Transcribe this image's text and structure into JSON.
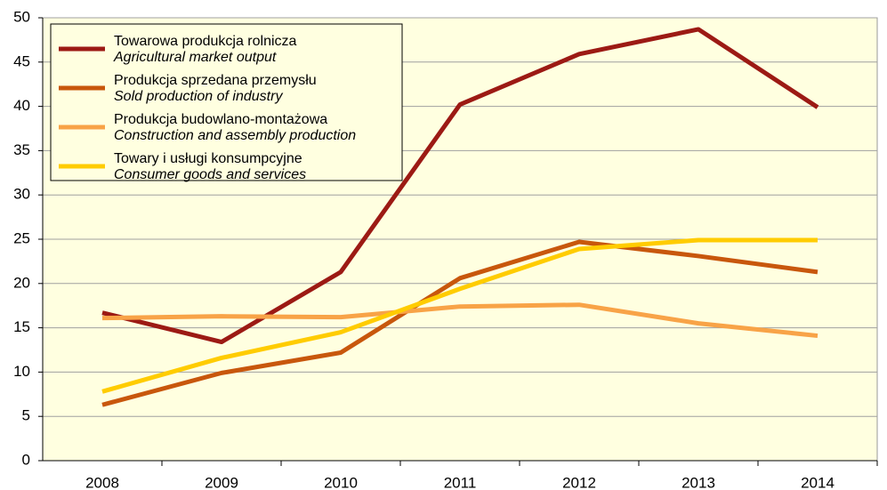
{
  "chart_data": {
    "type": "line",
    "categories": [
      "2008",
      "2009",
      "2010",
      "2011",
      "2012",
      "2013",
      "2014"
    ],
    "series": [
      {
        "name": "Towarowa produkcja rolnicza",
        "name_en": "Agricultural market output",
        "color": "#9c1a14",
        "values": [
          16.7,
          13.4,
          21.3,
          40.2,
          45.9,
          48.7,
          39.9
        ]
      },
      {
        "name": "Produkcja sprzedana przemysłu",
        "name_en": "Sold production of industry",
        "color": "#c8570c",
        "values": [
          6.3,
          9.9,
          12.2,
          20.6,
          24.7,
          23.1,
          21.3
        ]
      },
      {
        "name": "Produkcja budowlano-montażowa",
        "name_en": "Construction and assembly production",
        "color": "#f8a347",
        "values": [
          16.1,
          16.3,
          16.2,
          17.4,
          17.6,
          15.5,
          14.1
        ]
      },
      {
        "name": "Towary i usługi konsumpcyjne",
        "name_en": "Consumer goods and services",
        "color": "#ffcc00",
        "values": [
          7.8,
          11.6,
          14.5,
          19.4,
          23.9,
          24.9,
          24.9
        ]
      }
    ],
    "ylim": [
      0,
      50
    ],
    "yticks": [
      0,
      5,
      10,
      15,
      20,
      25,
      30,
      35,
      40,
      45,
      50
    ],
    "grid": true
  }
}
